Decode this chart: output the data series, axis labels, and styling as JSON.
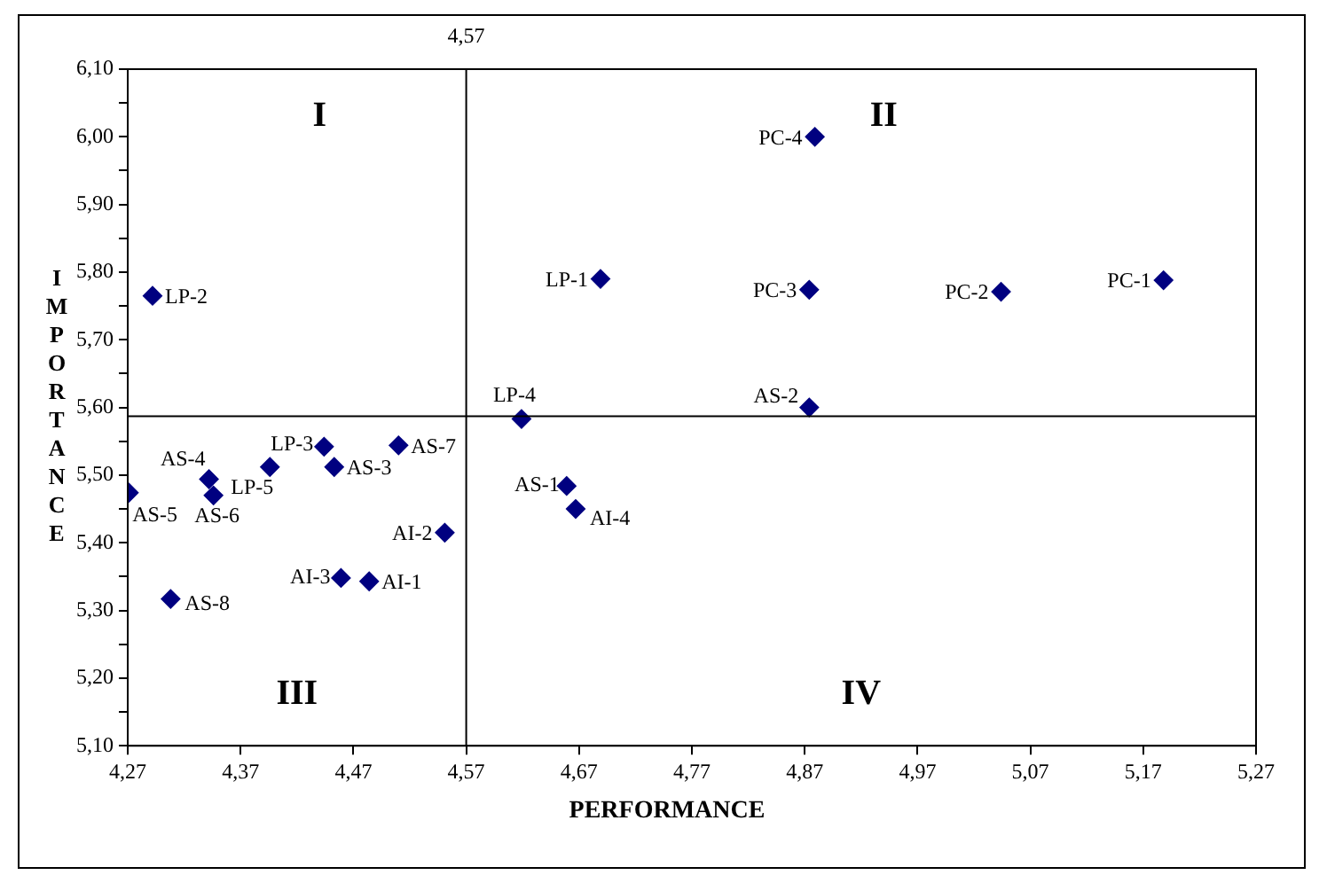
{
  "chart_data": {
    "type": "scatter",
    "xlabel": "PERFORMANCE",
    "ylabel": "IMPORTANCE",
    "x": [
      4.292,
      4.689,
      4.879,
      4.874,
      5.044,
      5.188,
      4.874,
      4.619,
      4.659,
      4.667,
      4.271,
      4.342,
      4.346,
      4.396,
      4.444,
      4.453,
      4.51,
      4.551,
      4.459,
      4.484,
      4.308
    ],
    "series": [
      {
        "color": "#000080",
        "values": [
          5.765,
          5.79,
          6.0,
          5.774,
          5.771,
          5.788,
          5.6,
          5.583,
          5.484,
          5.45,
          5.474,
          5.494,
          5.47,
          5.512,
          5.542,
          5.512,
          5.544,
          5.415,
          5.348,
          5.343,
          5.317
        ]
      }
    ],
    "marker": "diamond",
    "legend": false,
    "grid": false,
    "xlim": [
      4.27,
      5.27
    ],
    "xticks": [
      {
        "value": 4.27,
        "label": "4,27"
      },
      {
        "value": 4.37,
        "label": "4,37"
      },
      {
        "value": 4.47,
        "label": "4,47"
      },
      {
        "value": 4.57,
        "label": "4,57"
      },
      {
        "value": 4.67,
        "label": "4,67"
      },
      {
        "value": 4.77,
        "label": "4,77"
      },
      {
        "value": 4.87,
        "label": "4,87"
      },
      {
        "value": 4.97,
        "label": "4,97"
      },
      {
        "value": 5.07,
        "label": "5,07"
      },
      {
        "value": 5.17,
        "label": "5,17"
      },
      {
        "value": 5.27,
        "label": "5,27"
      }
    ],
    "ylim": [
      5.1,
      6.1
    ],
    "yticks": [
      {
        "value": 5.1,
        "label": "5,10"
      },
      {
        "value": 5.15,
        "label": null
      },
      {
        "value": 5.2,
        "label": "5,20"
      },
      {
        "value": 5.25,
        "label": null
      },
      {
        "value": 5.3,
        "label": "5,30"
      },
      {
        "value": 5.35,
        "label": null
      },
      {
        "value": 5.4,
        "label": "5,40"
      },
      {
        "value": 5.45,
        "label": null
      },
      {
        "value": 5.5,
        "label": "5,50"
      },
      {
        "value": 5.55,
        "label": null
      },
      {
        "value": 5.6,
        "label": "5,60"
      },
      {
        "value": 5.65,
        "label": null
      },
      {
        "value": 5.7,
        "label": "5,70"
      },
      {
        "value": 5.75,
        "label": null
      },
      {
        "value": 5.8,
        "label": "5,80"
      },
      {
        "value": 5.85,
        "label": null
      },
      {
        "value": 5.9,
        "label": "5,90"
      },
      {
        "value": 5.95,
        "label": null
      },
      {
        "value": 6.0,
        "label": "6,00"
      },
      {
        "value": 6.05,
        "label": null
      },
      {
        "value": 6.1,
        "label": "6,10"
      }
    ],
    "ref_lines": [
      {
        "axis": "x",
        "value": 4.57,
        "label": "4,57",
        "color": "#000000"
      },
      {
        "axis": "y",
        "value": 5.587,
        "label": null,
        "color": "#000000"
      }
    ],
    "annotations": [
      "I",
      "II",
      "III",
      "IV",
      {
        "text": "LP-2",
        "x": 4.292,
        "y": 5.765
      },
      {
        "text": "LP-1",
        "x": 4.689,
        "y": 5.79
      },
      {
        "text": "PC-4",
        "x": 4.879,
        "y": 6.0
      },
      {
        "text": "PC-3",
        "x": 4.874,
        "y": 5.774
      },
      {
        "text": "PC-2",
        "x": 5.044,
        "y": 5.771
      },
      {
        "text": "PC-1",
        "x": 5.188,
        "y": 5.788
      },
      {
        "text": "AS-2",
        "x": 4.874,
        "y": 5.6
      },
      {
        "text": "LP-4",
        "x": 4.619,
        "y": 5.583
      },
      {
        "text": "AS-1",
        "x": 4.659,
        "y": 5.484
      },
      {
        "text": "AI-4",
        "x": 4.667,
        "y": 5.45
      },
      {
        "text": "AS-5",
        "x": 4.271,
        "y": 5.474
      },
      {
        "text": "AS-4",
        "x": 4.342,
        "y": 5.494
      },
      {
        "text": "AS-6",
        "x": 4.346,
        "y": 5.47
      },
      {
        "text": "LP-5",
        "x": 4.396,
        "y": 5.512
      },
      {
        "text": "LP-3",
        "x": 4.444,
        "y": 5.542
      },
      {
        "text": "AS-3",
        "x": 4.453,
        "y": 5.512
      },
      {
        "text": "AS-7",
        "x": 4.51,
        "y": 5.544
      },
      {
        "text": "AI-2",
        "x": 4.551,
        "y": 5.415
      },
      {
        "text": "AI-3",
        "x": 4.459,
        "y": 5.348
      },
      {
        "text": "AI-1",
        "x": 4.484,
        "y": 5.343
      },
      {
        "text": "AS-8",
        "x": 4.308,
        "y": 5.317
      }
    ]
  }
}
